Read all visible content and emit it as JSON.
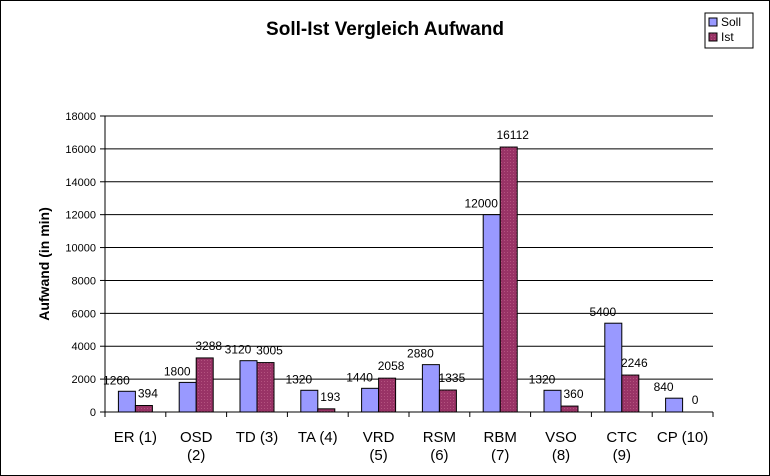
{
  "chart_data": {
    "type": "bar",
    "title": "Soll-Ist Vergleich Aufwand",
    "ylabel": "Aufwand (in min)",
    "xlabel": "",
    "ylim": [
      0,
      18000
    ],
    "y_ticks": [
      "0",
      "2000",
      "4000",
      "6000",
      "8000",
      "10000",
      "12000",
      "14000",
      "16000",
      "18000"
    ],
    "grid": true,
    "legend_position": "top-right",
    "categories": [
      [
        "ER (1)"
      ],
      [
        "OSD",
        "(2)"
      ],
      [
        "TD (3)"
      ],
      [
        "TA (4)"
      ],
      [
        "VRD",
        "(5)"
      ],
      [
        "RSM",
        "(6)"
      ],
      [
        "RBM",
        "(7)"
      ],
      [
        "VSO",
        "(8)"
      ],
      [
        "CTC",
        "(9)"
      ],
      [
        "CP (10)"
      ]
    ],
    "series": [
      {
        "name": "Soll",
        "color": "#9999ff",
        "values": [
          1260,
          1800,
          3120,
          1320,
          1440,
          2880,
          12000,
          1320,
          5400,
          840
        ],
        "labels": [
          "1260",
          "1800",
          "3120",
          "1320",
          "1440",
          "2880",
          "12000",
          "1320",
          "5400",
          "840"
        ]
      },
      {
        "name": "Ist",
        "color": "#993366",
        "values": [
          394,
          3288,
          3005,
          193,
          2058,
          1335,
          16112,
          360,
          2246,
          0
        ],
        "labels": [
          "394",
          "3288",
          "3005",
          "193",
          "2058",
          "1335",
          "16112",
          "360",
          "2246",
          "0"
        ]
      }
    ]
  }
}
